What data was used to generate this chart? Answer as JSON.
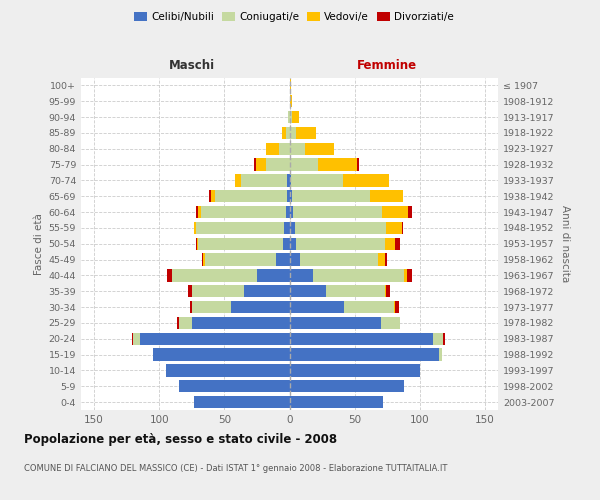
{
  "age_groups": [
    "0-4",
    "5-9",
    "10-14",
    "15-19",
    "20-24",
    "25-29",
    "30-34",
    "35-39",
    "40-44",
    "45-49",
    "50-54",
    "55-59",
    "60-64",
    "65-69",
    "70-74",
    "75-79",
    "80-84",
    "85-89",
    "90-94",
    "95-99",
    "100+"
  ],
  "birth_years": [
    "2003-2007",
    "1998-2002",
    "1993-1997",
    "1988-1992",
    "1983-1987",
    "1978-1982",
    "1973-1977",
    "1968-1972",
    "1963-1967",
    "1958-1962",
    "1953-1957",
    "1948-1952",
    "1943-1947",
    "1938-1942",
    "1933-1937",
    "1928-1932",
    "1923-1927",
    "1918-1922",
    "1913-1917",
    "1908-1912",
    "≤ 1907"
  ],
  "male_celibi": [
    73,
    85,
    95,
    105,
    115,
    75,
    45,
    35,
    25,
    10,
    5,
    4,
    3,
    2,
    2,
    0,
    0,
    0,
    0,
    0,
    0
  ],
  "male_coniugati": [
    0,
    0,
    0,
    0,
    5,
    10,
    30,
    40,
    65,
    55,
    65,
    68,
    65,
    55,
    35,
    18,
    8,
    3,
    1,
    0,
    0
  ],
  "male_vedovi": [
    0,
    0,
    0,
    0,
    0,
    0,
    0,
    0,
    0,
    1,
    1,
    1,
    2,
    3,
    5,
    8,
    10,
    3,
    0,
    0,
    0
  ],
  "male_divorziati": [
    0,
    0,
    0,
    0,
    1,
    1,
    1,
    3,
    4,
    1,
    1,
    0,
    2,
    2,
    0,
    1,
    0,
    0,
    0,
    0,
    0
  ],
  "female_nubili": [
    72,
    88,
    100,
    115,
    110,
    70,
    42,
    28,
    18,
    8,
    5,
    4,
    3,
    2,
    1,
    0,
    0,
    0,
    0,
    0,
    0
  ],
  "female_coniugate": [
    0,
    0,
    0,
    2,
    8,
    15,
    38,
    45,
    70,
    60,
    68,
    70,
    68,
    60,
    40,
    22,
    12,
    5,
    2,
    0,
    0
  ],
  "female_vedove": [
    0,
    0,
    0,
    0,
    0,
    0,
    1,
    1,
    2,
    5,
    8,
    12,
    20,
    25,
    35,
    30,
    22,
    15,
    5,
    2,
    1
  ],
  "female_divorziate": [
    0,
    0,
    0,
    0,
    1,
    0,
    3,
    3,
    4,
    2,
    4,
    1,
    3,
    0,
    0,
    1,
    0,
    0,
    0,
    0,
    0
  ],
  "color_celibi": "#4472c4",
  "color_coniugati": "#c5d9a0",
  "color_vedovi": "#ffc000",
  "color_divorziati": "#c00000",
  "xlim": 160,
  "title": "Popolazione per età, sesso e stato civile - 2008",
  "subtitle": "COMUNE DI FALCIANO DEL MASSICO (CE) - Dati ISTAT 1° gennaio 2008 - Elaborazione TUTTAITALIA.IT",
  "ylabel_left": "Fasce di età",
  "ylabel_right": "Anni di nascita",
  "legend_labels": [
    "Celibi/Nubili",
    "Coniugati/e",
    "Vedovi/e",
    "Divorziati/e"
  ],
  "label_maschi": "Maschi",
  "label_femmine": "Femmine",
  "bg_color": "#eeeeee",
  "plot_bg": "#ffffff"
}
